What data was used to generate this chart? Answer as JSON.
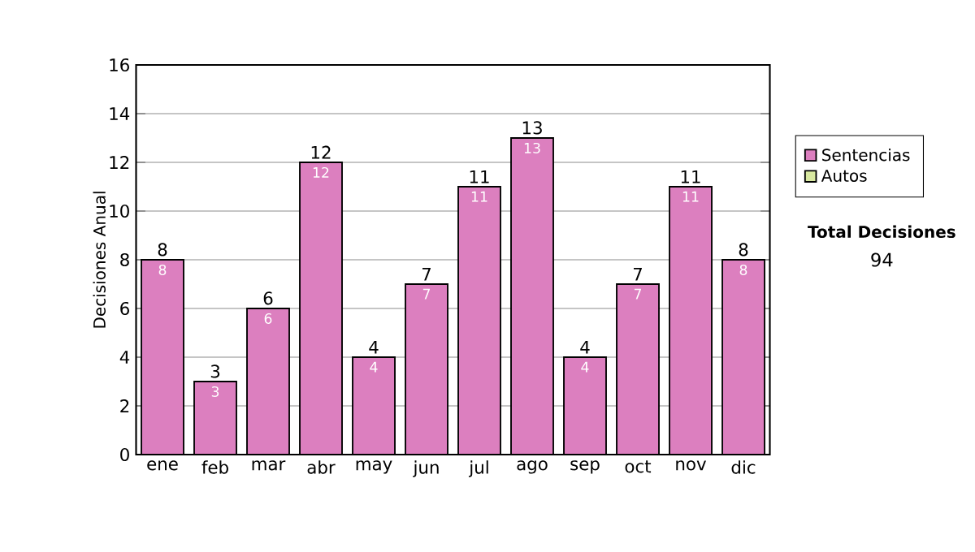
{
  "chart_data": {
    "type": "bar",
    "stacked": true,
    "ylabel": "Decisiones Anual",
    "categories": [
      "ene",
      "feb",
      "mar",
      "abr",
      "may",
      "jun",
      "jul",
      "ago",
      "sep",
      "oct",
      "nov",
      "dic"
    ],
    "series": [
      {
        "name": "Sentencias",
        "color": "#dc7fbf",
        "values": [
          8,
          3,
          6,
          12,
          4,
          7,
          11,
          13,
          4,
          7,
          11,
          8
        ],
        "value_labels": [
          "8",
          "3",
          "6",
          "12",
          "4",
          "7",
          "11",
          "13",
          "4",
          "7",
          "11",
          "8"
        ]
      },
      {
        "name": "Autos",
        "color": "#d8e8a0",
        "values": [
          0,
          0,
          0,
          0,
          0,
          0,
          0,
          0,
          0,
          0,
          0,
          0
        ]
      }
    ],
    "totals": [
      "8",
      "3",
      "6",
      "12",
      "4",
      "7",
      "11",
      "13",
      "4",
      "7",
      "11",
      "8"
    ],
    "ylim": [
      0,
      16
    ],
    "yticks": [
      0,
      2,
      4,
      6,
      8,
      10,
      12,
      14,
      16
    ],
    "grid": "y",
    "legend": "right",
    "annotations": [
      "Total Decisiones",
      "94"
    ]
  }
}
